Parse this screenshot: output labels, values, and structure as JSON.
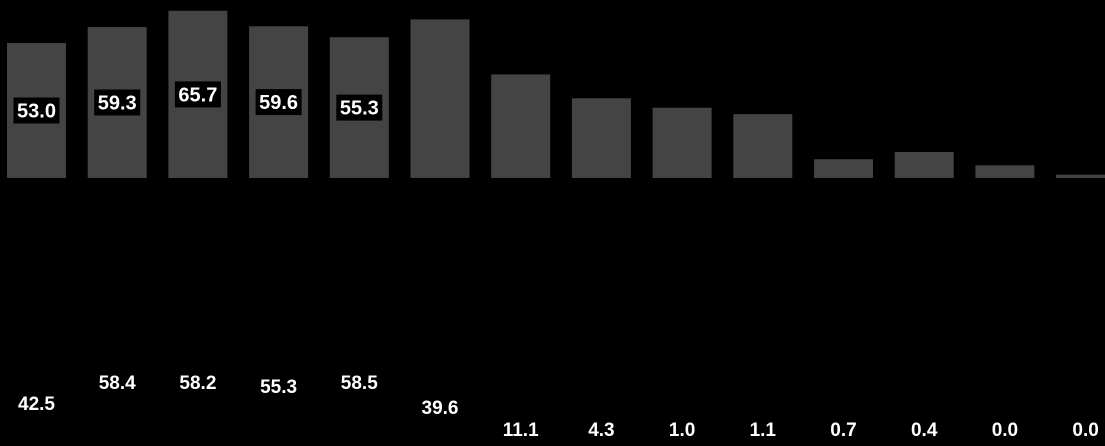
{
  "chart_data": {
    "type": "bar",
    "bar_color": "#444444",
    "background": "#000000",
    "label_color": "#ffffff",
    "grid": false,
    "legend": "none",
    "ylim": [
      0,
      66
    ],
    "values": [
      53.0,
      59.3,
      65.7,
      59.6,
      55.3,
      62.3,
      40.7,
      31.3,
      27.6,
      25.1,
      7.4,
      10.2,
      5.0,
      1.3
    ],
    "bar_labels": [
      "53.0",
      "59.3",
      "65.7",
      "59.6",
      "55.3",
      "",
      "",
      "",
      "",
      "",
      "",
      "",
      "",
      ""
    ],
    "lower_values": [
      42.5,
      58.4,
      58.2,
      55.3,
      58.5,
      39.6,
      11.1,
      4.3,
      1.0,
      1.1,
      0.7,
      0.4,
      0.0,
      0.0
    ],
    "lower_labels": [
      "42.5",
      "58.4",
      "58.2",
      "55.3",
      "58.5",
      "39.6",
      "11.1",
      "4.3",
      "1.0",
      "1.1",
      "0.7",
      "0.4",
      "0.0",
      "0.0"
    ]
  }
}
